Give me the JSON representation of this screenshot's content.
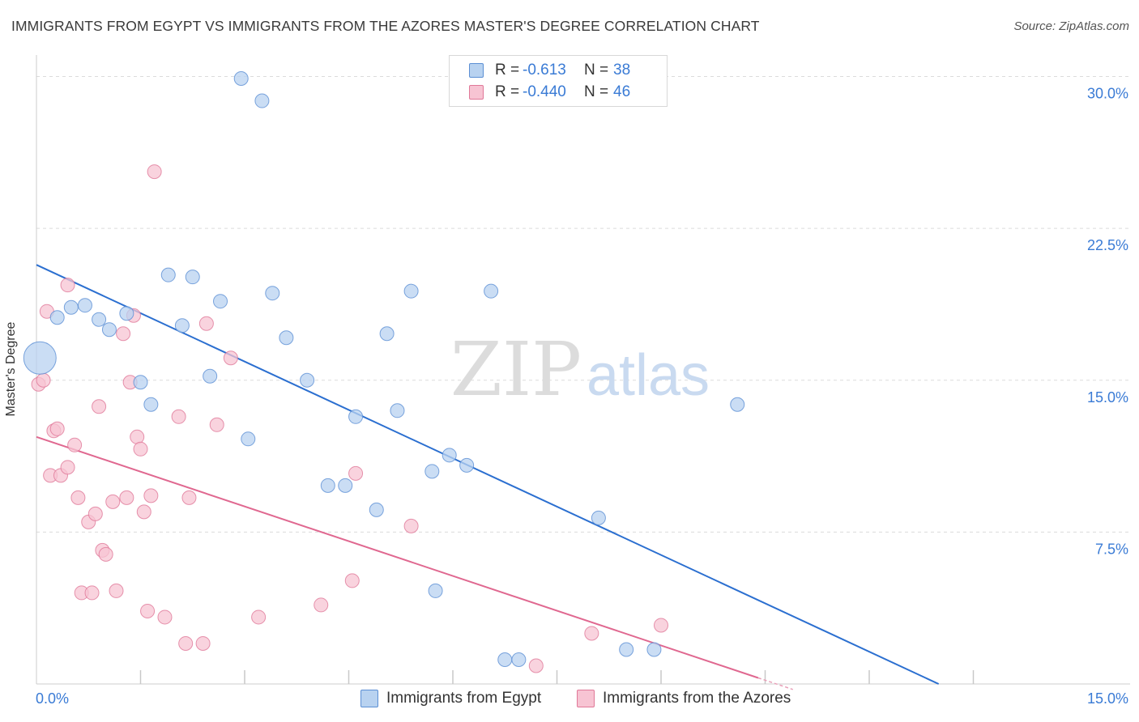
{
  "title": "IMMIGRANTS FROM EGYPT VS IMMIGRANTS FROM THE AZORES MASTER'S DEGREE CORRELATION CHART",
  "source": "Source: ZipAtlas.com",
  "watermark": {
    "zip": "ZIP",
    "atlas": "atlas"
  },
  "legend": {
    "rows": [
      {
        "r_label": "R =",
        "r_value": "-0.613",
        "n_label": "N =",
        "n_value": "38"
      },
      {
        "r_label": "R =",
        "r_value": "-0.440",
        "n_label": "N =",
        "n_value": "46"
      }
    ]
  },
  "colors": {
    "egypt_fill": "#b8d2f0",
    "egypt_stroke": "#5b8fd4",
    "egypt_line": "#2b6fd0",
    "azores_fill": "#f7c4d3",
    "azores_stroke": "#e07898",
    "azores_line": "#e06890",
    "axis_text": "#3a7bd5",
    "grid": "#dcdcdc"
  },
  "chart_data": {
    "type": "scatter",
    "title": "IMMIGRANTS FROM EGYPT VS IMMIGRANTS FROM THE AZORES MASTER'S DEGREE CORRELATION CHART",
    "xlabel": "",
    "ylabel": "Master's Degree",
    "xlim": [
      0,
      15
    ],
    "ylim": [
      0,
      30.9
    ],
    "x_tick_labels": [
      "0.0%",
      "15.0%"
    ],
    "y_ticks": [
      7.5,
      15.0,
      22.5,
      30.0
    ],
    "y_tick_labels": [
      "7.5%",
      "15.0%",
      "22.5%",
      "30.0%"
    ],
    "x_minor_ticks": [
      1.5,
      3.0,
      4.5,
      6.0,
      7.5,
      9.0,
      10.5,
      12.0,
      13.5
    ],
    "legend_location": "top-center",
    "series": [
      {
        "name": "Immigrants from Egypt",
        "r": -0.613,
        "n": 38,
        "trend": {
          "x": [
            0,
            13.0
          ],
          "y": [
            20.7,
            0
          ]
        },
        "points": [
          {
            "x": 0.05,
            "y": 16.1,
            "big": true
          },
          {
            "x": 0.3,
            "y": 18.1
          },
          {
            "x": 0.5,
            "y": 18.6
          },
          {
            "x": 0.7,
            "y": 18.7
          },
          {
            "x": 0.9,
            "y": 18.0
          },
          {
            "x": 1.05,
            "y": 17.5
          },
          {
            "x": 1.3,
            "y": 18.3
          },
          {
            "x": 1.5,
            "y": 14.9
          },
          {
            "x": 1.65,
            "y": 13.8
          },
          {
            "x": 1.9,
            "y": 20.2
          },
          {
            "x": 2.1,
            "y": 17.7
          },
          {
            "x": 2.25,
            "y": 20.1
          },
          {
            "x": 2.5,
            "y": 15.2
          },
          {
            "x": 2.65,
            "y": 18.9
          },
          {
            "x": 2.95,
            "y": 29.9
          },
          {
            "x": 3.05,
            "y": 12.1
          },
          {
            "x": 3.25,
            "y": 28.8
          },
          {
            "x": 3.4,
            "y": 19.3
          },
          {
            "x": 3.6,
            "y": 17.1
          },
          {
            "x": 3.9,
            "y": 15.0
          },
          {
            "x": 4.2,
            "y": 9.8
          },
          {
            "x": 4.45,
            "y": 9.8
          },
          {
            "x": 4.6,
            "y": 13.2
          },
          {
            "x": 4.9,
            "y": 8.6
          },
          {
            "x": 5.05,
            "y": 17.3
          },
          {
            "x": 5.2,
            "y": 13.5
          },
          {
            "x": 5.4,
            "y": 19.4
          },
          {
            "x": 5.75,
            "y": 4.6
          },
          {
            "x": 5.7,
            "y": 10.5
          },
          {
            "x": 5.95,
            "y": 11.3
          },
          {
            "x": 6.2,
            "y": 10.8
          },
          {
            "x": 6.55,
            "y": 19.4
          },
          {
            "x": 6.75,
            "y": 1.2
          },
          {
            "x": 6.95,
            "y": 1.2
          },
          {
            "x": 8.1,
            "y": 8.2
          },
          {
            "x": 8.5,
            "y": 1.7
          },
          {
            "x": 8.9,
            "y": 1.7
          },
          {
            "x": 10.1,
            "y": 13.8
          }
        ]
      },
      {
        "name": "Immigrants from the Azores",
        "r": -0.44,
        "n": 46,
        "trend": {
          "x": [
            0,
            10.4
          ],
          "y": [
            12.2,
            0.3
          ]
        },
        "points": [
          {
            "x": 0.03,
            "y": 14.8
          },
          {
            "x": 0.1,
            "y": 15.0
          },
          {
            "x": 0.15,
            "y": 18.4
          },
          {
            "x": 0.2,
            "y": 10.3
          },
          {
            "x": 0.25,
            "y": 12.5
          },
          {
            "x": 0.3,
            "y": 12.6
          },
          {
            "x": 0.35,
            "y": 10.3
          },
          {
            "x": 0.45,
            "y": 10.7
          },
          {
            "x": 0.45,
            "y": 19.7
          },
          {
            "x": 0.55,
            "y": 11.8
          },
          {
            "x": 0.6,
            "y": 9.2
          },
          {
            "x": 0.65,
            "y": 4.5
          },
          {
            "x": 0.75,
            "y": 8.0
          },
          {
            "x": 0.8,
            "y": 4.5
          },
          {
            "x": 0.85,
            "y": 8.4
          },
          {
            "x": 0.9,
            "y": 13.7
          },
          {
            "x": 0.95,
            "y": 6.6
          },
          {
            "x": 1.0,
            "y": 6.4
          },
          {
            "x": 1.1,
            "y": 9.0
          },
          {
            "x": 1.15,
            "y": 4.6
          },
          {
            "x": 1.25,
            "y": 17.3
          },
          {
            "x": 1.3,
            "y": 9.2
          },
          {
            "x": 1.35,
            "y": 14.9
          },
          {
            "x": 1.4,
            "y": 18.2
          },
          {
            "x": 1.45,
            "y": 12.2
          },
          {
            "x": 1.5,
            "y": 11.6
          },
          {
            "x": 1.55,
            "y": 8.5
          },
          {
            "x": 1.6,
            "y": 3.6
          },
          {
            "x": 1.65,
            "y": 9.3
          },
          {
            "x": 1.7,
            "y": 25.3
          },
          {
            "x": 1.85,
            "y": 3.3
          },
          {
            "x": 2.05,
            "y": 13.2
          },
          {
            "x": 2.15,
            "y": 2.0
          },
          {
            "x": 2.2,
            "y": 9.2
          },
          {
            "x": 2.4,
            "y": 2.0
          },
          {
            "x": 2.45,
            "y": 17.8
          },
          {
            "x": 2.6,
            "y": 12.8
          },
          {
            "x": 2.8,
            "y": 16.1
          },
          {
            "x": 3.2,
            "y": 3.3
          },
          {
            "x": 4.1,
            "y": 3.9
          },
          {
            "x": 4.55,
            "y": 5.1
          },
          {
            "x": 4.6,
            "y": 10.4
          },
          {
            "x": 5.4,
            "y": 7.8
          },
          {
            "x": 7.2,
            "y": 0.9
          },
          {
            "x": 8.0,
            "y": 2.5
          },
          {
            "x": 9.0,
            "y": 2.9
          }
        ]
      }
    ]
  },
  "bottom_legend": [
    {
      "label": "Immigrants from Egypt"
    },
    {
      "label": "Immigrants from the Azores"
    }
  ]
}
